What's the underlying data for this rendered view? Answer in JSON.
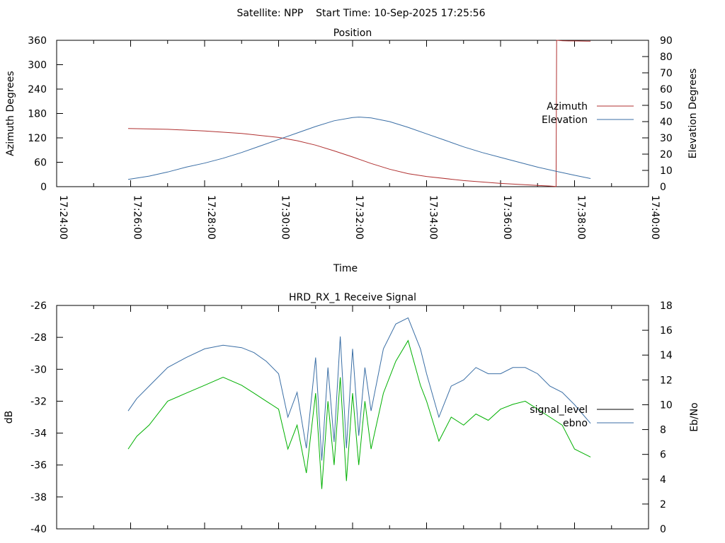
{
  "header": {
    "title": "Satellite: NPP    Start Time: 10-Sep-2025 17:25:56"
  },
  "chart_data": [
    {
      "type": "line",
      "title": "Position",
      "xlabel": "Time",
      "ylabel": "Azimuth Degrees",
      "y2label": "Elevation Degrees",
      "xlim": [
        "17:24:00",
        "17:40:00"
      ],
      "ylim": [
        0,
        360
      ],
      "y2lim": [
        0,
        90
      ],
      "xticks": [
        "17:24:00",
        "17:26:00",
        "17:28:00",
        "17:30:00",
        "17:32:00",
        "17:34:00",
        "17:36:00",
        "17:38:00",
        "17:40:00"
      ],
      "yticks": [
        "0",
        "60",
        "120",
        "180",
        "240",
        "300",
        "360"
      ],
      "y2ticks": [
        "0",
        "10",
        "20",
        "30",
        "40",
        "50",
        "60",
        "70",
        "80",
        "90"
      ],
      "legend_position": "right",
      "series": [
        {
          "name": "Azimuth",
          "axis": "y",
          "color": "#b03030",
          "x": [
            "17:25:56",
            "17:27:00",
            "17:28:00",
            "17:29:00",
            "17:30:00",
            "17:30:30",
            "17:31:00",
            "17:31:30",
            "17:32:00",
            "17:32:30",
            "17:33:00",
            "17:33:30",
            "17:34:00",
            "17:35:00",
            "17:36:00",
            "17:37:00",
            "17:37:20",
            "17:37:30",
            "17:37:31",
            "17:37:40",
            "17:37:50",
            "17:38:00",
            "17:38:20",
            "17:38:26"
          ],
          "y": [
            143,
            141,
            137,
            131,
            121,
            113,
            102,
            88,
            73,
            57,
            43,
            32,
            25,
            15,
            8,
            3,
            1.5,
            0.5,
            360,
            359,
            358.5,
            358.5,
            358,
            358
          ]
        },
        {
          "name": "Elevation",
          "axis": "y2",
          "color": "#3a6ea5",
          "x": [
            "17:25:56",
            "17:26:30",
            "17:27:00",
            "17:27:30",
            "17:28:00",
            "17:28:30",
            "17:29:00",
            "17:29:30",
            "17:30:00",
            "17:30:30",
            "17:31:00",
            "17:31:30",
            "17:32:00",
            "17:32:10",
            "17:32:30",
            "17:33:00",
            "17:33:30",
            "17:34:00",
            "17:34:30",
            "17:35:00",
            "17:35:30",
            "17:36:00",
            "17:36:30",
            "17:37:00",
            "17:37:30",
            "17:38:00",
            "17:38:26"
          ],
          "y": [
            4.5,
            6.5,
            9,
            12,
            14.5,
            17.5,
            21,
            25,
            29,
            33,
            37,
            40.5,
            42.5,
            42.8,
            42.3,
            40,
            36.5,
            32.5,
            28.5,
            24.5,
            21,
            18,
            15,
            12,
            9.5,
            7,
            5
          ]
        }
      ]
    },
    {
      "type": "line",
      "title": "HRD_RX_1 Receive Signal",
      "xlabel": "",
      "ylabel": "dB",
      "y2label": "Eb/No",
      "xlim": [
        "17:24:00",
        "17:40:00"
      ],
      "ylim": [
        -40,
        -26
      ],
      "y2lim": [
        0,
        18
      ],
      "yticks": [
        "-40",
        "-38",
        "-36",
        "-34",
        "-32",
        "-30",
        "-28",
        "-26"
      ],
      "y2ticks": [
        "0",
        "2",
        "4",
        "6",
        "8",
        "10",
        "12",
        "14",
        "16",
        "18"
      ],
      "legend_position": "right",
      "series": [
        {
          "name": "signal_level",
          "axis": "y",
          "color": "#00b000",
          "x": [
            "17:25:56",
            "17:26:10",
            "17:26:30",
            "17:27:00",
            "17:27:30",
            "17:28:00",
            "17:28:30",
            "17:29:00",
            "17:29:20",
            "17:29:40",
            "17:30:00",
            "17:30:15",
            "17:30:30",
            "17:30:45",
            "17:31:00",
            "17:31:10",
            "17:31:20",
            "17:31:30",
            "17:31:40",
            "17:31:50",
            "17:32:00",
            "17:32:10",
            "17:32:20",
            "17:32:30",
            "17:32:50",
            "17:33:10",
            "17:33:30",
            "17:33:50",
            "17:34:00",
            "17:34:20",
            "17:34:40",
            "17:35:00",
            "17:35:20",
            "17:35:40",
            "17:36:00",
            "17:36:20",
            "17:36:40",
            "17:37:00",
            "17:37:20",
            "17:37:40",
            "17:38:00",
            "17:38:26"
          ],
          "y": [
            -35,
            -34.2,
            -33.5,
            -32,
            -31.5,
            -31,
            -30.5,
            -31,
            -31.5,
            -32,
            -32.5,
            -35,
            -33.5,
            -36.5,
            -31.5,
            -37.5,
            -32,
            -36,
            -30.5,
            -37,
            -31.5,
            -36,
            -32,
            -35,
            -31.5,
            -29.5,
            -28.2,
            -31,
            -32,
            -34.5,
            -33,
            -33.5,
            -32.8,
            -33.2,
            -32.5,
            -32.2,
            -32,
            -32.5,
            -33,
            -33.5,
            -35,
            -35.5
          ]
        },
        {
          "name": "ebno",
          "axis": "y2",
          "color": "#3a6ea5",
          "x": [
            "17:25:56",
            "17:26:10",
            "17:26:30",
            "17:27:00",
            "17:27:30",
            "17:28:00",
            "17:28:30",
            "17:29:00",
            "17:29:20",
            "17:29:40",
            "17:30:00",
            "17:30:15",
            "17:30:30",
            "17:30:45",
            "17:31:00",
            "17:31:10",
            "17:31:20",
            "17:31:30",
            "17:31:40",
            "17:31:50",
            "17:32:00",
            "17:32:10",
            "17:32:20",
            "17:32:30",
            "17:32:50",
            "17:33:10",
            "17:33:30",
            "17:33:50",
            "17:34:00",
            "17:34:20",
            "17:34:40",
            "17:35:00",
            "17:35:20",
            "17:35:40",
            "17:36:00",
            "17:36:20",
            "17:36:40",
            "17:37:00",
            "17:37:20",
            "17:37:40",
            "17:38:00",
            "17:38:26"
          ],
          "y": [
            9.5,
            10.5,
            11.5,
            13,
            13.8,
            14.5,
            14.8,
            14.6,
            14.2,
            13.5,
            12.5,
            9,
            11,
            6.5,
            13.8,
            5.5,
            13,
            7,
            15.5,
            6.5,
            14.5,
            7.5,
            13,
            9.5,
            14.5,
            16.5,
            17,
            14.5,
            12.5,
            9,
            11.5,
            12,
            13,
            12.5,
            12.5,
            13,
            13,
            12.5,
            11.5,
            11,
            10,
            8.5
          ]
        }
      ]
    }
  ]
}
